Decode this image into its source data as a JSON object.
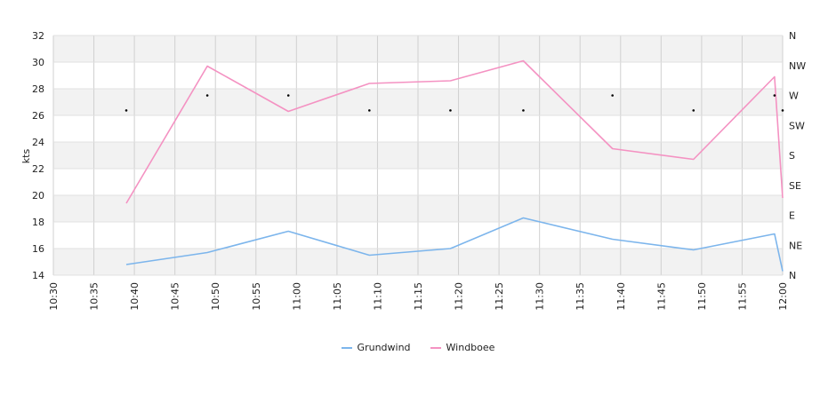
{
  "chart_data": {
    "type": "line",
    "ylabel": "kts",
    "ylim": [
      14,
      32
    ],
    "yticks": [
      14,
      16,
      18,
      20,
      22,
      24,
      26,
      28,
      30,
      32
    ],
    "xticks": [
      "10:30",
      "10:35",
      "10:40",
      "10:45",
      "10:50",
      "10:55",
      "11:00",
      "11:05",
      "11:10",
      "11:15",
      "11:20",
      "11:25",
      "11:30",
      "11:35",
      "11:40",
      "11:45",
      "11:50",
      "11:55",
      "12:00"
    ],
    "right_axis_labels": [
      "N",
      "NE",
      "E",
      "SE",
      "S",
      "SW",
      "W",
      "NW",
      "N"
    ],
    "series": [
      {
        "name": "Grundwind",
        "color": "#7cb5ec",
        "x": [
          "10:39",
          "10:49",
          "10:59",
          "11:09",
          "11:19",
          "11:28",
          "11:39",
          "11:49",
          "11:59",
          "12:00"
        ],
        "values": [
          14.8,
          15.7,
          17.3,
          15.5,
          16.0,
          18.3,
          16.7,
          15.9,
          17.1,
          14.3
        ]
      },
      {
        "name": "Windboee",
        "color": "#f492c2",
        "x": [
          "10:39",
          "10:49",
          "10:59",
          "11:09",
          "11:19",
          "11:28",
          "11:39",
          "11:49",
          "11:59",
          "12:00"
        ],
        "values": [
          19.4,
          29.7,
          26.3,
          28.4,
          28.6,
          30.1,
          23.5,
          22.7,
          28.9,
          19.8
        ]
      }
    ],
    "direction_markers": {
      "x": [
        "10:39",
        "10:49",
        "10:59",
        "11:09",
        "11:19",
        "11:28",
        "11:39",
        "11:49",
        "11:59",
        "12:00"
      ],
      "values": [
        "WSW",
        "W",
        "W",
        "WSW",
        "WSW",
        "WSW",
        "W",
        "WSW",
        "W",
        "WSW"
      ]
    }
  }
}
